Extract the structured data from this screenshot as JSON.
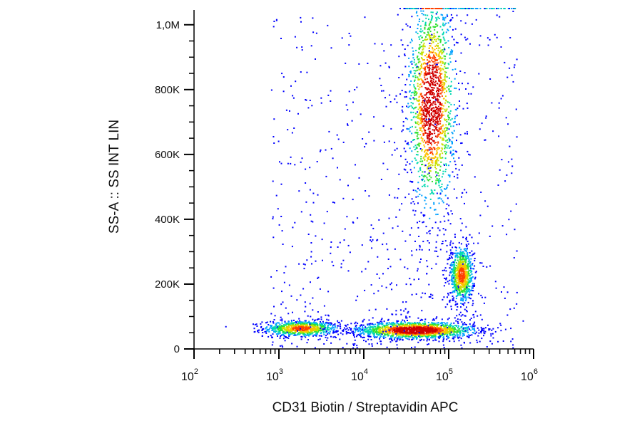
{
  "chart_data": {
    "type": "scatter",
    "title": "",
    "xlabel": "CD31 Biotin / Streptavidin APC",
    "ylabel": "SS-A :: SS INT LIN",
    "x_scale": "log",
    "xlim": [
      100,
      1000000
    ],
    "ylim": [
      0,
      1050000
    ],
    "xticks": [
      {
        "value": 100,
        "base": "10",
        "exp": "2"
      },
      {
        "value": 1000,
        "base": "10",
        "exp": "3"
      },
      {
        "value": 10000,
        "base": "10",
        "exp": "4"
      },
      {
        "value": 100000,
        "base": "10",
        "exp": "5"
      },
      {
        "value": 1000000,
        "base": "10",
        "exp": "6"
      }
    ],
    "yticks": [
      {
        "value": 0,
        "label": "0"
      },
      {
        "value": 200000,
        "label": "200K"
      },
      {
        "value": 400000,
        "label": "400K"
      },
      {
        "value": 600000,
        "label": "600K"
      },
      {
        "value": 800000,
        "label": "800K"
      },
      {
        "value": 1000000,
        "label": "1,0M"
      }
    ],
    "grid": false,
    "legend": "none",
    "colormap": [
      "#0000ff",
      "#00a0ff",
      "#00d8b0",
      "#30e030",
      "#c8e000",
      "#ffc000",
      "#ff4000",
      "#d00000"
    ],
    "populations": [
      {
        "x_center": 1800,
        "y_center": 65000,
        "x_spread_decades": 0.22,
        "y_spread": 12000,
        "density": "medium"
      },
      {
        "x_center": 40000,
        "y_center": 60000,
        "x_spread_decades": 0.35,
        "y_spread": 13000,
        "density": "high"
      },
      {
        "x_center": 62000,
        "y_center": 760000,
        "x_spread_decades": 0.14,
        "y_spread": 170000,
        "density": "high"
      },
      {
        "x_center": 140000,
        "y_center": 230000,
        "x_spread_decades": 0.07,
        "y_spread": 45000,
        "density": "medium"
      }
    ]
  }
}
